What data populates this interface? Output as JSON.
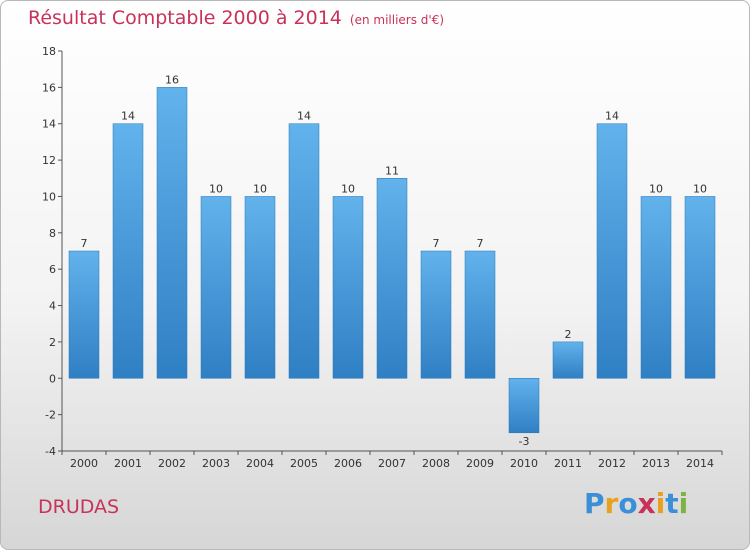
{
  "chart_data": {
    "type": "bar",
    "title": "Résultat Comptable 2000 à 2014",
    "subtitle": "(en milliers d'€)",
    "categories": [
      "2000",
      "2001",
      "2002",
      "2003",
      "2004",
      "2005",
      "2006",
      "2007",
      "2008",
      "2009",
      "2010",
      "2011",
      "2012",
      "2013",
      "2014"
    ],
    "values": [
      7,
      14,
      16,
      10,
      10,
      14,
      10,
      11,
      7,
      7,
      -3,
      2,
      14,
      10,
      10
    ],
    "ylim": [
      -4,
      18
    ],
    "yticks": [
      -4,
      -2,
      0,
      2,
      4,
      6,
      8,
      10,
      12,
      14,
      16,
      18
    ],
    "grid": false,
    "bar_color": "#3a8fd6"
  },
  "commune": "DRUDAS",
  "logo": {
    "letters": [
      "P",
      "r",
      "o",
      "x",
      "i",
      "t",
      "i"
    ],
    "colors": [
      "#3a8fd6",
      "#e8a020",
      "#3a8fd6",
      "#c8325a",
      "#e8a020",
      "#3a8fd6",
      "#7cb342"
    ]
  }
}
